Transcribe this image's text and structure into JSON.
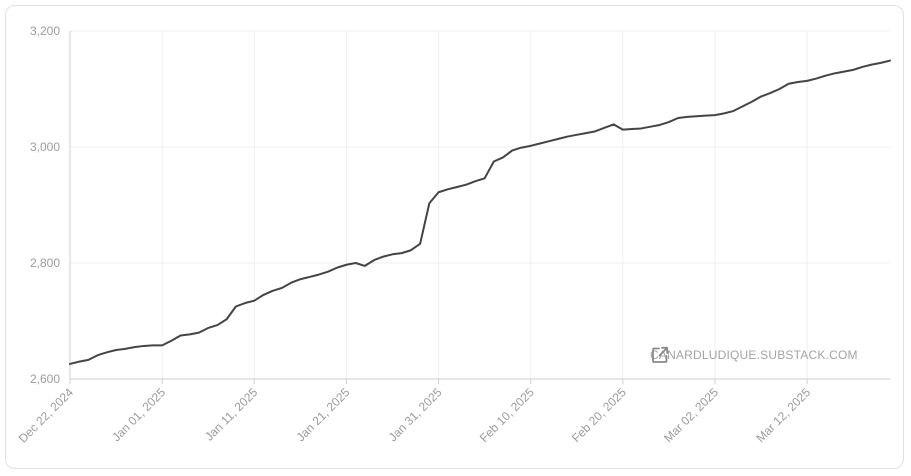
{
  "source_link": {
    "text": "CANARDLUDIQUE.SUBSTACK.COM",
    "icon": "external-link-icon"
  },
  "colors": {
    "line": "#444444",
    "grid": "#efefef",
    "axis": "#cfcfcf",
    "tick_text": "#9b9b9b"
  },
  "chart_data": {
    "type": "line",
    "title": "",
    "xlabel": "",
    "ylabel": "",
    "ylim": [
      2600,
      3200
    ],
    "xlim": [
      "2024-12-22",
      "2025-03-21"
    ],
    "y_ticks": [
      2600,
      2800,
      3000,
      3200
    ],
    "y_tick_labels": [
      "2,600",
      "2,800",
      "3,000",
      "3,200"
    ],
    "x_ticks": [
      "2024-12-22",
      "2025-01-01",
      "2025-01-11",
      "2025-01-21",
      "2025-01-31",
      "2025-02-10",
      "2025-02-20",
      "2025-03-02",
      "2025-03-12"
    ],
    "x_tick_labels": [
      "Dec 22, 2024",
      "Jan 01, 2025",
      "Jan 11, 2025",
      "Jan 21, 2025",
      "Jan 31, 2025",
      "Feb 10, 2025",
      "Feb 20, 2025",
      "Mar 02, 2025",
      "Mar 12, 2025"
    ],
    "grid": true,
    "series": [
      {
        "x": [
          "2024-12-22",
          "2024-12-23",
          "2024-12-24",
          "2024-12-25",
          "2024-12-26",
          "2024-12-27",
          "2024-12-28",
          "2024-12-29",
          "2024-12-30",
          "2024-12-31",
          "2025-01-01",
          "2025-01-02",
          "2025-01-03",
          "2025-01-04",
          "2025-01-05",
          "2025-01-06",
          "2025-01-07",
          "2025-01-08",
          "2025-01-09",
          "2025-01-10",
          "2025-01-11",
          "2025-01-12",
          "2025-01-13",
          "2025-01-14",
          "2025-01-15",
          "2025-01-16",
          "2025-01-17",
          "2025-01-18",
          "2025-01-19",
          "2025-01-20",
          "2025-01-21",
          "2025-01-22",
          "2025-01-23",
          "2025-01-24",
          "2025-01-25",
          "2025-01-26",
          "2025-01-27",
          "2025-01-28",
          "2025-01-29",
          "2025-01-30",
          "2025-01-31",
          "2025-02-01",
          "2025-02-02",
          "2025-02-03",
          "2025-02-04",
          "2025-02-05",
          "2025-02-06",
          "2025-02-07",
          "2025-02-08",
          "2025-02-09",
          "2025-02-10",
          "2025-02-11",
          "2025-02-12",
          "2025-02-13",
          "2025-02-14",
          "2025-02-15",
          "2025-02-16",
          "2025-02-17",
          "2025-02-18",
          "2025-02-19",
          "2025-02-20",
          "2025-02-21",
          "2025-02-22",
          "2025-02-23",
          "2025-02-24",
          "2025-02-25",
          "2025-02-26",
          "2025-02-27",
          "2025-02-28",
          "2025-03-01",
          "2025-03-02",
          "2025-03-03",
          "2025-03-04",
          "2025-03-05",
          "2025-03-06",
          "2025-03-07",
          "2025-03-08",
          "2025-03-09",
          "2025-03-10",
          "2025-03-11",
          "2025-03-12",
          "2025-03-13",
          "2025-03-14",
          "2025-03-15",
          "2025-03-16",
          "2025-03-17",
          "2025-03-18",
          "2025-03-19",
          "2025-03-20",
          "2025-03-21"
        ],
        "values": [
          2626,
          2630,
          2633,
          2641,
          2646,
          2650,
          2652,
          2655,
          2657,
          2658,
          2658,
          2666,
          2675,
          2677,
          2680,
          2688,
          2693,
          2703,
          2725,
          2731,
          2735,
          2745,
          2752,
          2757,
          2766,
          2772,
          2776,
          2780,
          2785,
          2792,
          2797,
          2800,
          2795,
          2805,
          2811,
          2815,
          2817,
          2822,
          2833,
          2903,
          2922,
          2927,
          2931,
          2935,
          2941,
          2946,
          2975,
          2982,
          2994,
          2999,
          3002,
          3006,
          3010,
          3014,
          3018,
          3021,
          3024,
          3027,
          3033,
          3039,
          3030,
          3031,
          3032,
          3035,
          3038,
          3043,
          3050,
          3052,
          3053,
          3054,
          3055,
          3058,
          3062,
          3070,
          3078,
          3087,
          3093,
          3100,
          3109,
          3112,
          3114,
          3118,
          3123,
          3127,
          3130,
          3133,
          3138,
          3142,
          3145,
          3149
        ]
      }
    ]
  }
}
